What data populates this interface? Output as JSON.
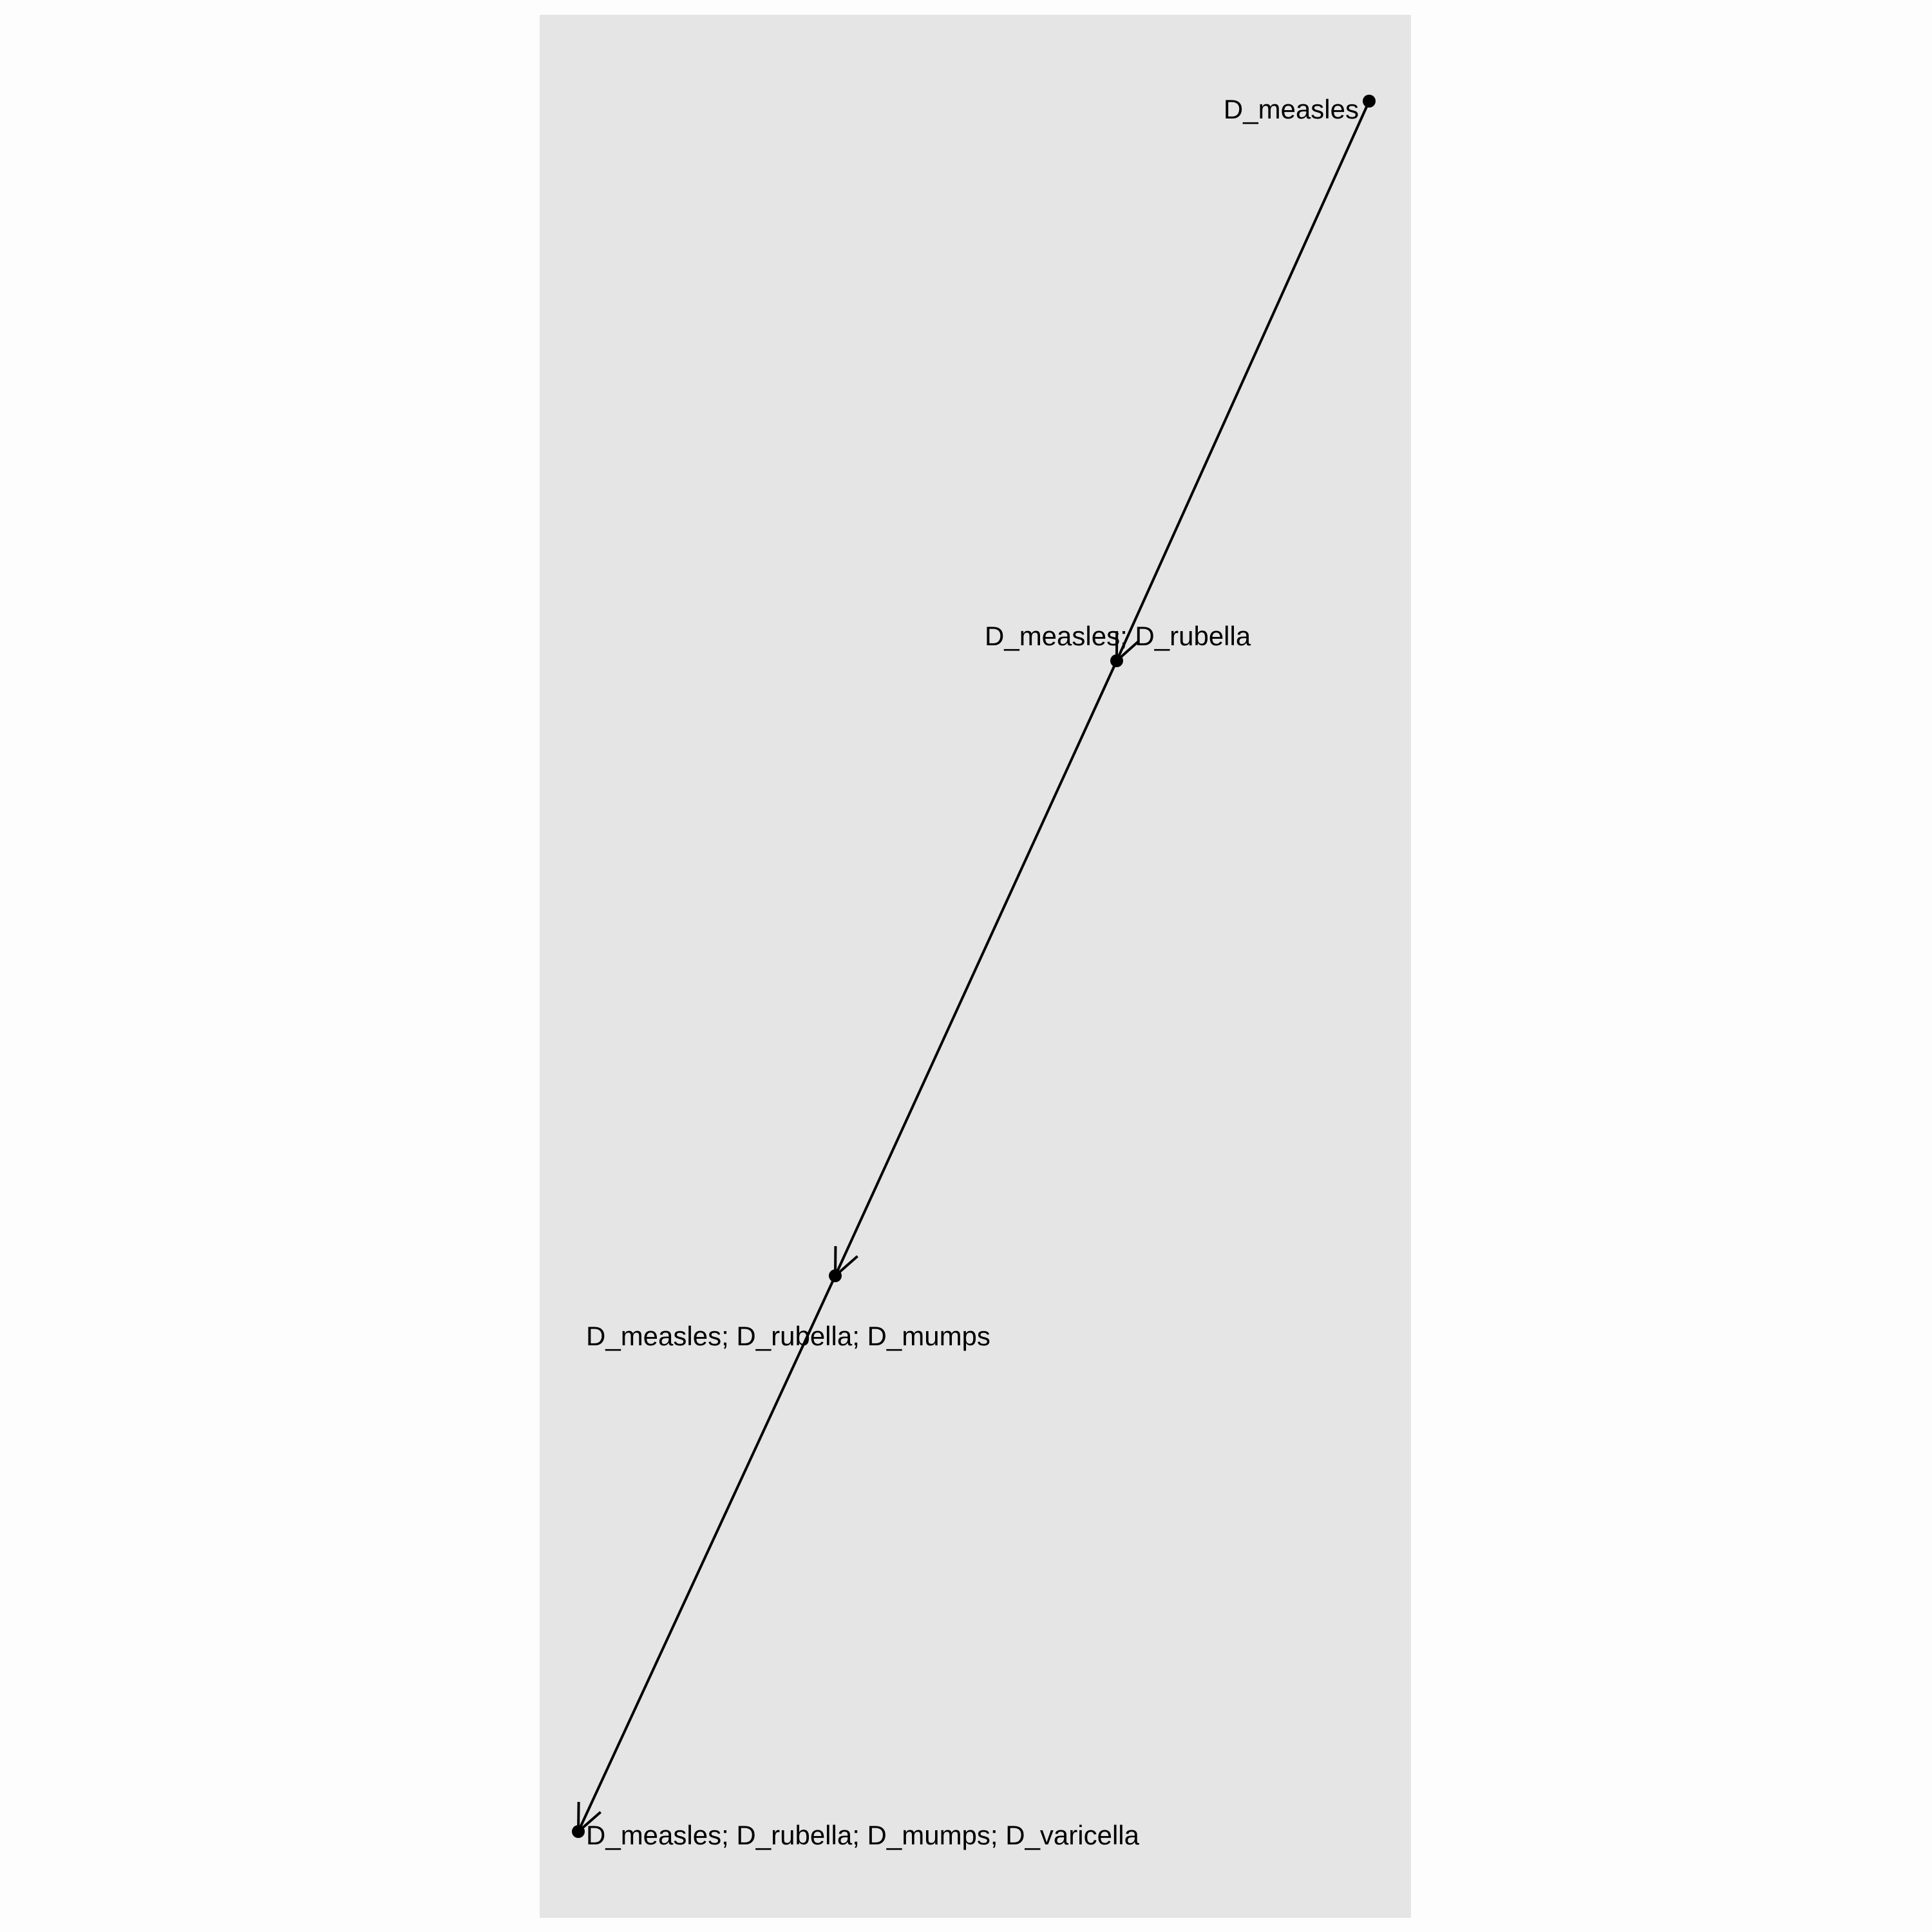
{
  "diagram": {
    "type": "directed-graph",
    "panel_background": "#e5e5e5",
    "page_background": "#fdfdfd",
    "line_color": "#000000",
    "nodes": [
      {
        "id": "n1",
        "label": "D_measles"
      },
      {
        "id": "n2",
        "label": "D_measles; D_rubella"
      },
      {
        "id": "n3",
        "label": "D_measles; D_rubella; D_mumps"
      },
      {
        "id": "n4",
        "label": "D_measles; D_rubella; D_mumps; D_varicella"
      }
    ],
    "edges": [
      {
        "from": "n1",
        "to": "n2"
      },
      {
        "from": "n2",
        "to": "n3"
      },
      {
        "from": "n3",
        "to": "n4"
      }
    ]
  }
}
